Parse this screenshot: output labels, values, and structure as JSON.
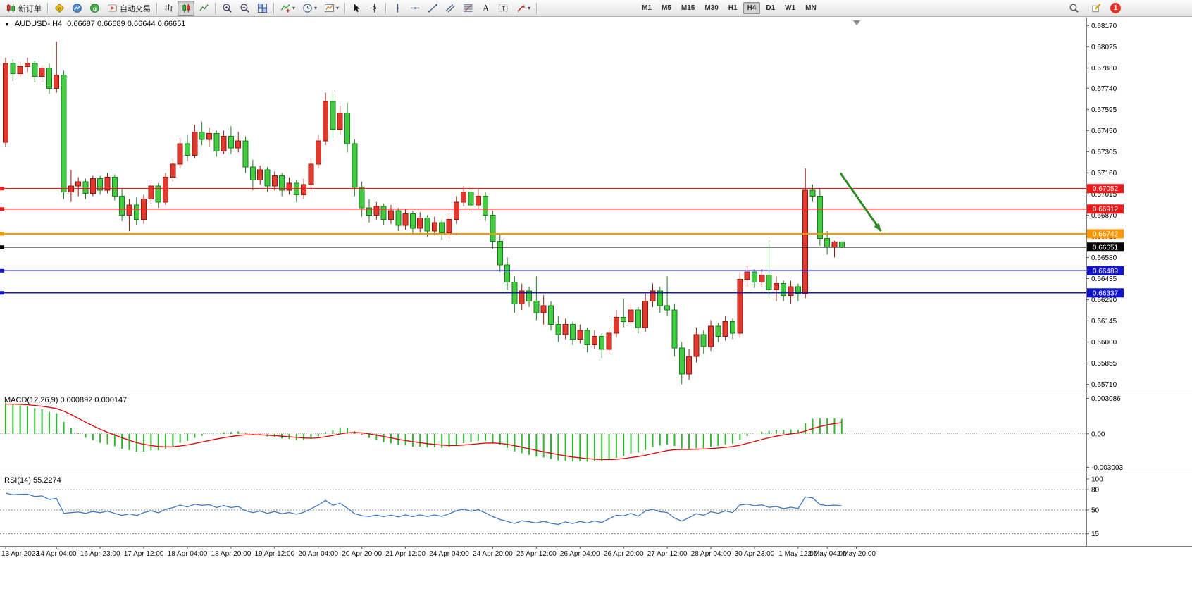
{
  "toolbar": {
    "items": [
      {
        "name": "new-order",
        "label": "新订单"
      },
      {
        "type": "sep"
      },
      {
        "name": "metaeditor"
      },
      {
        "name": "market-watch"
      },
      {
        "name": "metaquotes"
      },
      {
        "name": "auto-trading",
        "label": "自动交易"
      },
      {
        "type": "sep"
      },
      {
        "name": "bar-chart"
      },
      {
        "name": "candlestick-chart",
        "pressed": true
      },
      {
        "name": "line-chart"
      },
      {
        "type": "sep"
      },
      {
        "name": "zoom-in"
      },
      {
        "name": "zoom-out"
      },
      {
        "name": "tile-windows"
      },
      {
        "type": "sep"
      },
      {
        "name": "indicators",
        "dropdown": true
      },
      {
        "name": "periods",
        "dropdown": true
      },
      {
        "name": "templates",
        "dropdown": true
      },
      {
        "type": "sep"
      },
      {
        "name": "cursor"
      },
      {
        "name": "crosshair"
      },
      {
        "type": "sep"
      },
      {
        "name": "vertical-line"
      },
      {
        "name": "horizontal-line"
      },
      {
        "name": "trendline"
      },
      {
        "name": "equidistant-channel"
      },
      {
        "name": "fibonacci"
      },
      {
        "name": "text"
      },
      {
        "name": "text-label"
      },
      {
        "name": "arrows",
        "dropdown": true
      },
      {
        "type": "sep"
      }
    ],
    "timeframes": [
      "M1",
      "M5",
      "M15",
      "M30",
      "H1",
      "H4",
      "D1",
      "W1",
      "MN"
    ],
    "active_timeframe": "H4",
    "right_items": [
      {
        "name": "search"
      },
      {
        "name": "compose"
      },
      {
        "name": "notification-badge",
        "label": "1"
      }
    ]
  },
  "chart": {
    "symbol_label": "AUDUSD-,H4",
    "ohlc_label": "0.66687 0.66689 0.66644 0.66651"
  },
  "chart_data": {
    "type": "candlestick",
    "symbol": "AUDUSD-",
    "timeframe": "H4",
    "price_range": [
      0.6565,
      0.6821
    ],
    "price_axis_ticks": [
      "0.68170",
      "0.68025",
      "0.67880",
      "0.67740",
      "0.67595",
      "0.67450",
      "0.67305",
      "0.67160",
      "0.67015",
      "0.66870",
      "0.66725",
      "0.66580",
      "0.66435",
      "0.66290",
      "0.66145",
      "0.66000",
      "0.65855",
      "0.65710"
    ],
    "horizontal_lines": [
      {
        "name": "resistance-line-1",
        "price": 0.67052,
        "label": "0.67052",
        "color": "#ee1c1c",
        "width": 1.6
      },
      {
        "name": "resistance-line-2",
        "price": 0.66912,
        "label": "0.66912",
        "color": "#ee1c1c",
        "width": 1.6
      },
      {
        "name": "pivot-line",
        "price": 0.66742,
        "label": "0.66742",
        "color": "#ff9800",
        "width": 2
      },
      {
        "name": "bid-price-line",
        "price": 0.66651,
        "label": "0.66651",
        "color": "#000000",
        "width": 1
      },
      {
        "name": "support-line-1",
        "price": 0.66489,
        "label": "0.66489",
        "color": "#1414cc",
        "width": 1.6
      },
      {
        "name": "support-line-2",
        "price": 0.66337,
        "label": "0.66337",
        "color": "#1414cc",
        "width": 1.6
      }
    ],
    "colors": {
      "bull_fill": "#e23a2e",
      "bull_border": "#8f1a10",
      "bear_fill": "#41cc41",
      "bear_border": "#1e7d1e"
    },
    "candles": [
      [
        0.6737,
        0.6795,
        0.6734,
        0.6791
      ],
      [
        0.6791,
        0.6794,
        0.6779,
        0.6784
      ],
      [
        0.6784,
        0.6792,
        0.6781,
        0.6789
      ],
      [
        0.6789,
        0.6795,
        0.6785,
        0.6791
      ],
      [
        0.6791,
        0.6793,
        0.6778,
        0.6782
      ],
      [
        0.6782,
        0.679,
        0.6778,
        0.6788
      ],
      [
        0.6788,
        0.6791,
        0.677,
        0.6774
      ],
      [
        0.6774,
        0.6806,
        0.6771,
        0.6783
      ],
      [
        0.6783,
        0.6786,
        0.6698,
        0.6703
      ],
      [
        0.6703,
        0.6718,
        0.6696,
        0.6707
      ],
      [
        0.6707,
        0.6713,
        0.67,
        0.671
      ],
      [
        0.671,
        0.6712,
        0.6698,
        0.6702
      ],
      [
        0.6702,
        0.6714,
        0.67,
        0.6712
      ],
      [
        0.6712,
        0.6714,
        0.6701,
        0.6704
      ],
      [
        0.6704,
        0.6716,
        0.6702,
        0.6713
      ],
      [
        0.6713,
        0.6715,
        0.6697,
        0.67
      ],
      [
        0.67,
        0.6705,
        0.6683,
        0.6687
      ],
      [
        0.6687,
        0.6698,
        0.6676,
        0.6694
      ],
      [
        0.6694,
        0.6699,
        0.668,
        0.6684
      ],
      [
        0.6684,
        0.6701,
        0.6681,
        0.6698
      ],
      [
        0.6698,
        0.671,
        0.6695,
        0.6707
      ],
      [
        0.6707,
        0.6709,
        0.6692,
        0.6696
      ],
      [
        0.6696,
        0.6716,
        0.6694,
        0.6713
      ],
      [
        0.6713,
        0.6726,
        0.671,
        0.6722
      ],
      [
        0.6722,
        0.674,
        0.6719,
        0.6736
      ],
      [
        0.6736,
        0.6742,
        0.6724,
        0.6728
      ],
      [
        0.6728,
        0.6749,
        0.6726,
        0.6744
      ],
      [
        0.6744,
        0.6751,
        0.6735,
        0.6739
      ],
      [
        0.6739,
        0.6747,
        0.6734,
        0.6743
      ],
      [
        0.6743,
        0.6745,
        0.6727,
        0.6731
      ],
      [
        0.6731,
        0.6745,
        0.6729,
        0.6741
      ],
      [
        0.6741,
        0.6748,
        0.6729,
        0.6733
      ],
      [
        0.6733,
        0.6744,
        0.673,
        0.6738
      ],
      [
        0.6738,
        0.6741,
        0.6716,
        0.672
      ],
      [
        0.672,
        0.6725,
        0.6704,
        0.6711
      ],
      [
        0.6711,
        0.6721,
        0.6708,
        0.6718
      ],
      [
        0.6718,
        0.672,
        0.6703,
        0.6707
      ],
      [
        0.6707,
        0.6717,
        0.6704,
        0.6714
      ],
      [
        0.6714,
        0.6716,
        0.67,
        0.6704
      ],
      [
        0.6704,
        0.6713,
        0.6701,
        0.6709
      ],
      [
        0.6709,
        0.6711,
        0.6696,
        0.6701
      ],
      [
        0.6701,
        0.6712,
        0.6698,
        0.6708
      ],
      [
        0.6708,
        0.6726,
        0.6705,
        0.6722
      ],
      [
        0.6722,
        0.6742,
        0.6719,
        0.6738
      ],
      [
        0.6738,
        0.6771,
        0.6735,
        0.6765
      ],
      [
        0.6765,
        0.6772,
        0.674,
        0.6746
      ],
      [
        0.6746,
        0.6762,
        0.6742,
        0.6757
      ],
      [
        0.6757,
        0.6764,
        0.673,
        0.6736
      ],
      [
        0.6736,
        0.6739,
        0.67,
        0.6706
      ],
      [
        0.6706,
        0.671,
        0.6686,
        0.6692
      ],
      [
        0.6692,
        0.6698,
        0.6682,
        0.6687
      ],
      [
        0.6687,
        0.6696,
        0.6684,
        0.6693
      ],
      [
        0.6693,
        0.6695,
        0.668,
        0.6684
      ],
      [
        0.6684,
        0.6694,
        0.6681,
        0.669
      ],
      [
        0.669,
        0.6692,
        0.6676,
        0.668
      ],
      [
        0.668,
        0.6691,
        0.6677,
        0.6688
      ],
      [
        0.6688,
        0.669,
        0.6674,
        0.6678
      ],
      [
        0.6678,
        0.6689,
        0.6675,
        0.6685
      ],
      [
        0.6685,
        0.6687,
        0.6672,
        0.6676
      ],
      [
        0.6676,
        0.6686,
        0.6673,
        0.6682
      ],
      [
        0.6682,
        0.6684,
        0.667,
        0.6675
      ],
      [
        0.6675,
        0.6688,
        0.6671,
        0.6684
      ],
      [
        0.6684,
        0.67,
        0.6681,
        0.6696
      ],
      [
        0.6696,
        0.6707,
        0.6693,
        0.6703
      ],
      [
        0.6703,
        0.6706,
        0.669,
        0.6694
      ],
      [
        0.6694,
        0.6705,
        0.6691,
        0.67
      ],
      [
        0.67,
        0.6703,
        0.6683,
        0.6687
      ],
      [
        0.6687,
        0.669,
        0.6664,
        0.6669
      ],
      [
        0.6669,
        0.6674,
        0.6648,
        0.6653
      ],
      [
        0.6653,
        0.6658,
        0.6636,
        0.6641
      ],
      [
        0.6641,
        0.6645,
        0.662,
        0.6626
      ],
      [
        0.6626,
        0.664,
        0.6622,
        0.6635
      ],
      [
        0.6635,
        0.6638,
        0.6624,
        0.6628
      ],
      [
        0.6628,
        0.6645,
        0.6615,
        0.662
      ],
      [
        0.662,
        0.6632,
        0.6612,
        0.6625
      ],
      [
        0.6625,
        0.6628,
        0.6608,
        0.6612
      ],
      [
        0.6612,
        0.6618,
        0.66,
        0.6605
      ],
      [
        0.6605,
        0.6616,
        0.6602,
        0.6612
      ],
      [
        0.6612,
        0.6614,
        0.6598,
        0.6602
      ],
      [
        0.6602,
        0.6612,
        0.6599,
        0.6608
      ],
      [
        0.6608,
        0.661,
        0.6593,
        0.6598
      ],
      [
        0.6598,
        0.6608,
        0.6595,
        0.6604
      ],
      [
        0.6604,
        0.6606,
        0.6589,
        0.6595
      ],
      [
        0.6595,
        0.661,
        0.6592,
        0.6606
      ],
      [
        0.6606,
        0.6622,
        0.6603,
        0.6617
      ],
      [
        0.6617,
        0.663,
        0.661,
        0.6614
      ],
      [
        0.6614,
        0.6626,
        0.6611,
        0.6622
      ],
      [
        0.6622,
        0.6624,
        0.6606,
        0.661
      ],
      [
        0.661,
        0.6633,
        0.6607,
        0.6628
      ],
      [
        0.6628,
        0.664,
        0.6624,
        0.6635
      ],
      [
        0.6635,
        0.6638,
        0.662,
        0.6625
      ],
      [
        0.6625,
        0.6645,
        0.6618,
        0.6622
      ],
      [
        0.6622,
        0.6626,
        0.659,
        0.6596
      ],
      [
        0.6596,
        0.66,
        0.6571,
        0.6578
      ],
      [
        0.6578,
        0.6595,
        0.6574,
        0.659
      ],
      [
        0.659,
        0.661,
        0.6586,
        0.6605
      ],
      [
        0.6605,
        0.6608,
        0.6592,
        0.6597
      ],
      [
        0.6597,
        0.6615,
        0.6594,
        0.6611
      ],
      [
        0.6611,
        0.6613,
        0.66,
        0.6604
      ],
      [
        0.6604,
        0.6618,
        0.6601,
        0.6614
      ],
      [
        0.6614,
        0.6616,
        0.6602,
        0.6606
      ],
      [
        0.6606,
        0.6648,
        0.6603,
        0.6643
      ],
      [
        0.6643,
        0.6652,
        0.6638,
        0.6648
      ],
      [
        0.6648,
        0.665,
        0.6637,
        0.6641
      ],
      [
        0.6641,
        0.665,
        0.6638,
        0.6646
      ],
      [
        0.6646,
        0.667,
        0.663,
        0.6636
      ],
      [
        0.6636,
        0.6645,
        0.6628,
        0.664
      ],
      [
        0.664,
        0.6642,
        0.6628,
        0.6632
      ],
      [
        0.6632,
        0.6642,
        0.6626,
        0.6638
      ],
      [
        0.6638,
        0.664,
        0.6628,
        0.6633
      ],
      [
        0.6633,
        0.6719,
        0.663,
        0.6704
      ],
      [
        0.6704,
        0.6708,
        0.6696,
        0.67
      ],
      [
        0.67,
        0.6705,
        0.6666,
        0.6671
      ],
      [
        0.6671,
        0.6676,
        0.666,
        0.6665
      ],
      [
        0.6665,
        0.66695,
        0.6658,
        0.66687
      ],
      [
        0.66687,
        0.66689,
        0.66644,
        0.66651
      ]
    ],
    "time_labels": [
      {
        "i": 0,
        "label": "13 Apr 2023"
      },
      {
        "i": 7,
        "label": "14 Apr 04:00"
      },
      {
        "i": 13,
        "label": "16 Apr 23:00"
      },
      {
        "i": 19,
        "label": "17 Apr 12:00"
      },
      {
        "i": 25,
        "label": "18 Apr 04:00"
      },
      {
        "i": 31,
        "label": "18 Apr 20:00"
      },
      {
        "i": 37,
        "label": "19 Apr 12:00"
      },
      {
        "i": 43,
        "label": "20 Apr 04:00"
      },
      {
        "i": 49,
        "label": "20 Apr 20:00"
      },
      {
        "i": 55,
        "label": "21 Apr 12:00"
      },
      {
        "i": 61,
        "label": "24 Apr 04:00"
      },
      {
        "i": 67,
        "label": "24 Apr 20:00"
      },
      {
        "i": 73,
        "label": "25 Apr 12:00"
      },
      {
        "i": 79,
        "label": "26 Apr 04:00"
      },
      {
        "i": 85,
        "label": "26 Apr 20:00"
      },
      {
        "i": 91,
        "label": "27 Apr 12:00"
      },
      {
        "i": 97,
        "label": "28 Apr 04:00"
      },
      {
        "i": 103,
        "label": "30 Apr 23:00"
      },
      {
        "i": 109,
        "label": "1 May 12:00"
      },
      {
        "i": 113,
        "label": "2 May 04:00"
      },
      {
        "i": 117,
        "label": "2 May 20:00"
      }
    ],
    "macd_range": [
      -0.00325,
      0.00335
    ],
    "rsi_range": [
      0,
      100
    ],
    "indicators": {
      "macd": {
        "label": "MACD(12,26,9) 0.000892 0.000147",
        "params": [
          12,
          26,
          9
        ],
        "current_values": [
          "0.000892",
          "0.000147"
        ],
        "scale_labels": [
          "0.003086",
          "0.00",
          "-0.003003"
        ],
        "histogram_color": "#2eb82e",
        "signal_color": "#e00000",
        "seed": {
          "ema12": 0.6772,
          "ema26": 0.6744,
          "signal": 0.0026
        }
      },
      "rsi": {
        "label": "RSI(14) 55.2274",
        "period": 14,
        "current_value": "55.2274",
        "levels": [
          80,
          50,
          15
        ],
        "scale_labels": [
          "100",
          "80",
          "50",
          "15"
        ],
        "color": "#3c78c8",
        "seed": {
          "avg_gain": 0.0012,
          "avg_loss": 0.0004
        }
      }
    },
    "annotation_arrow": {
      "i1": 114.8,
      "p1": 0.6716,
      "i2": 120.4,
      "p2": 0.6676,
      "color": "#2e8b22"
    }
  }
}
